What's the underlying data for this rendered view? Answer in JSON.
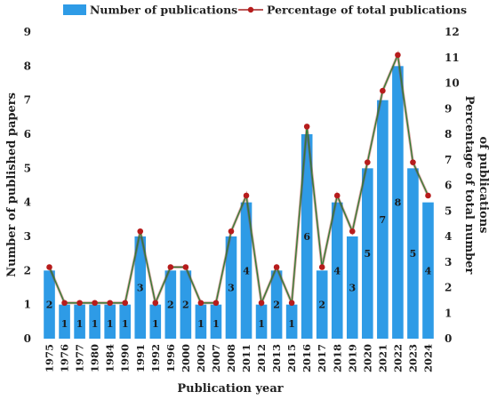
{
  "chart_data": {
    "type": "bar",
    "categories": [
      "1975",
      "1976",
      "1977",
      "1980",
      "1984",
      "1990",
      "1991",
      "1992",
      "1996",
      "2000",
      "2002",
      "2007",
      "2008",
      "2011",
      "2012",
      "2013",
      "2015",
      "2016",
      "2017",
      "2018",
      "2019",
      "2020",
      "2021",
      "2022",
      "2023",
      "2024"
    ],
    "series": [
      {
        "name": "Number of publications",
        "type": "bar",
        "axis": "left",
        "color": "#2e9be6",
        "values": [
          2,
          1,
          1,
          1,
          1,
          1,
          3,
          1,
          2,
          2,
          1,
          1,
          3,
          4,
          1,
          2,
          1,
          6,
          2,
          4,
          3,
          5,
          7,
          8,
          5,
          4
        ]
      },
      {
        "name": "Percentage of total publications",
        "type": "line",
        "axis": "right",
        "line_color": "#2e7d32",
        "marker_color": "#b71c1c",
        "values": [
          2.8,
          1.4,
          1.4,
          1.4,
          1.4,
          1.4,
          4.2,
          1.4,
          2.8,
          2.8,
          1.4,
          1.4,
          4.2,
          5.6,
          1.4,
          2.8,
          1.4,
          8.3,
          2.8,
          5.6,
          4.2,
          6.9,
          9.7,
          11.1,
          6.9,
          5.6
        ]
      }
    ],
    "title": "",
    "xlabel": "Publication year",
    "ylabel": "Number of published papers",
    "y2label": "Percentage of total number of publications",
    "y2label_lines": [
      "Percentage of total number",
      "of publications"
    ],
    "ylim": [
      0,
      9
    ],
    "y2lim": [
      0,
      12
    ],
    "yticks": [
      0,
      1,
      2,
      3,
      4,
      5,
      6,
      7,
      8,
      9
    ],
    "y2ticks": [
      0,
      1,
      2,
      3,
      4,
      5,
      6,
      7,
      8,
      9,
      10,
      11,
      12
    ],
    "grid": false,
    "legend": "top"
  }
}
